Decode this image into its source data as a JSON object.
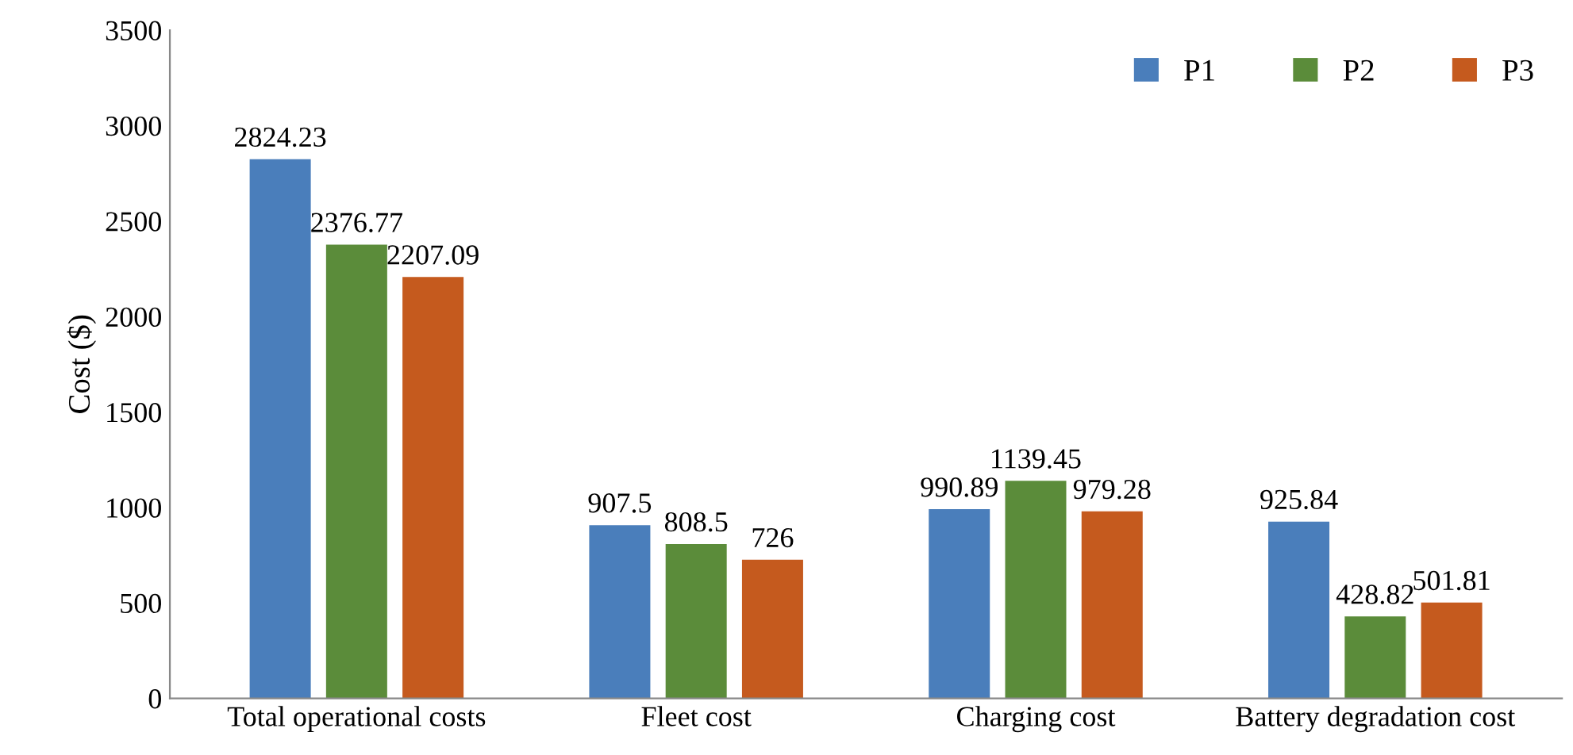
{
  "chart_data": {
    "type": "bar",
    "ylabel": "Cost ($)",
    "categories": [
      "Total operational costs",
      "Fleet cost",
      "Charging cost",
      "Battery degradation cost"
    ],
    "series": [
      {
        "name": "P1",
        "color": "#4a7ebb",
        "values": [
          2824.23,
          907.5,
          990.89,
          925.84
        ]
      },
      {
        "name": "P2",
        "color": "#5b8c3a",
        "values": [
          2376.77,
          808.5,
          1139.45,
          428.82
        ]
      },
      {
        "name": "P3",
        "color": "#c55a1e",
        "values": [
          2207.09,
          726,
          979.28,
          501.81
        ]
      }
    ],
    "ylim": [
      0,
      3500
    ],
    "yticks": [
      0,
      500,
      1000,
      1500,
      2000,
      2500,
      3000,
      3500
    ],
    "data_labels": true,
    "legend": "top right",
    "grid": false
  }
}
